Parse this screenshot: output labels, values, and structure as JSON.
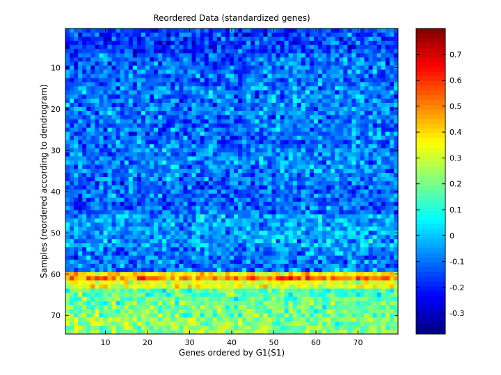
{
  "chart_data": {
    "type": "heatmap",
    "title": "Reordered Data (standardized genes)",
    "xlabel": "Genes ordered by G1(S1)",
    "ylabel": "Samples (reordered according to dendrogram)",
    "n_genes": 79,
    "n_samples": 74,
    "xlim": [
      0.5,
      79.5
    ],
    "ylim": [
      0.5,
      74.5
    ],
    "x_ticks": [
      10,
      20,
      30,
      40,
      50,
      60,
      70
    ],
    "y_ticks": [
      10,
      20,
      30,
      40,
      50,
      60,
      70
    ],
    "colormap": "jet",
    "color_range": [
      -0.38,
      0.8
    ],
    "colorbar_ticks": [
      -0.3,
      -0.2,
      -0.1,
      0,
      0.1,
      0.2,
      0.3,
      0.4,
      0.5,
      0.6,
      0.7
    ],
    "row_bands": [
      {
        "rows": [
          1,
          6
        ],
        "mean": -0.17
      },
      {
        "rows": [
          7,
          14
        ],
        "mean": -0.12
      },
      {
        "rows": [
          15,
          21
        ],
        "mean": -0.09
      },
      {
        "rows": [
          22,
          28
        ],
        "mean": -0.11
      },
      {
        "rows": [
          29,
          37
        ],
        "mean": -0.09
      },
      {
        "rows": [
          38,
          45
        ],
        "mean": -0.12
      },
      {
        "rows": [
          46,
          53
        ],
        "mean": -0.05
      },
      {
        "rows": [
          54,
          59
        ],
        "mean": -0.1
      },
      {
        "rows": [
          60,
          60
        ],
        "mean": 0.38
      },
      {
        "rows": [
          61,
          61
        ],
        "mean": 0.52
      },
      {
        "rows": [
          62,
          63
        ],
        "mean": 0.33
      },
      {
        "rows": [
          64,
          66
        ],
        "mean": 0.16
      },
      {
        "rows": [
          67,
          70
        ],
        "mean": 0.2
      },
      {
        "rows": [
          71,
          74
        ],
        "mean": 0.23
      }
    ],
    "noise_amplitude": 0.09
  }
}
